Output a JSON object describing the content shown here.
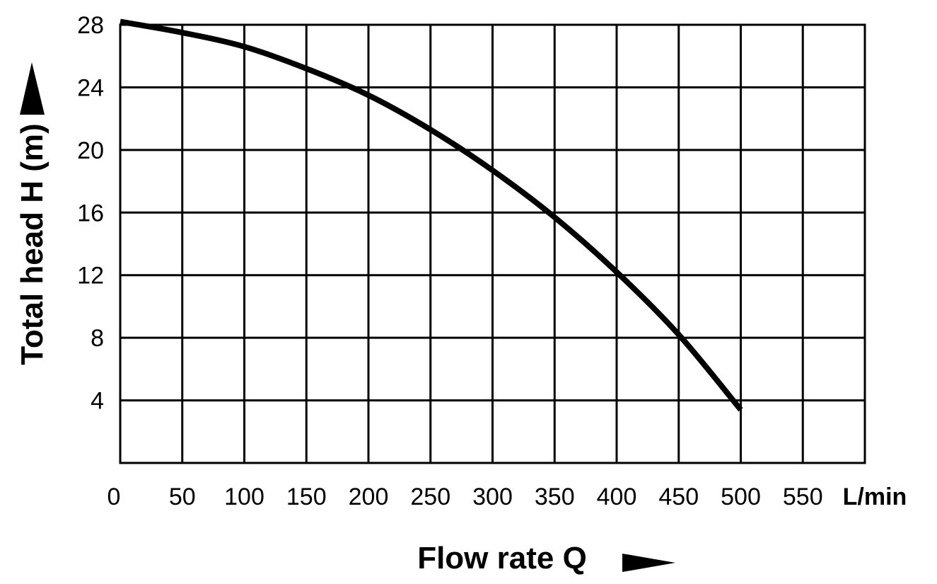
{
  "chart_data": {
    "type": "line",
    "xlabel": "Flow rate Q",
    "ylabel": "Total head H (m)",
    "x_unit": "L/min",
    "xlim": [
      0,
      600
    ],
    "ylim": [
      0,
      28
    ],
    "x_ticks": [
      0,
      50,
      100,
      150,
      200,
      250,
      300,
      350,
      400,
      450,
      500,
      550
    ],
    "y_ticks": [
      4,
      8,
      12,
      16,
      20,
      24,
      28
    ],
    "grid": true,
    "legend": "none",
    "series": [
      {
        "x": [
          0,
          50,
          100,
          150,
          200,
          250,
          300,
          350,
          400,
          450,
          500
        ],
        "y": [
          28.2,
          27.5,
          26.6,
          25.2,
          23.5,
          21.3,
          18.7,
          15.7,
          12.2,
          8.2,
          3.4
        ]
      }
    ],
    "colors": {
      "line": "#000000",
      "grid": "#000000",
      "background": "#ffffff"
    }
  }
}
